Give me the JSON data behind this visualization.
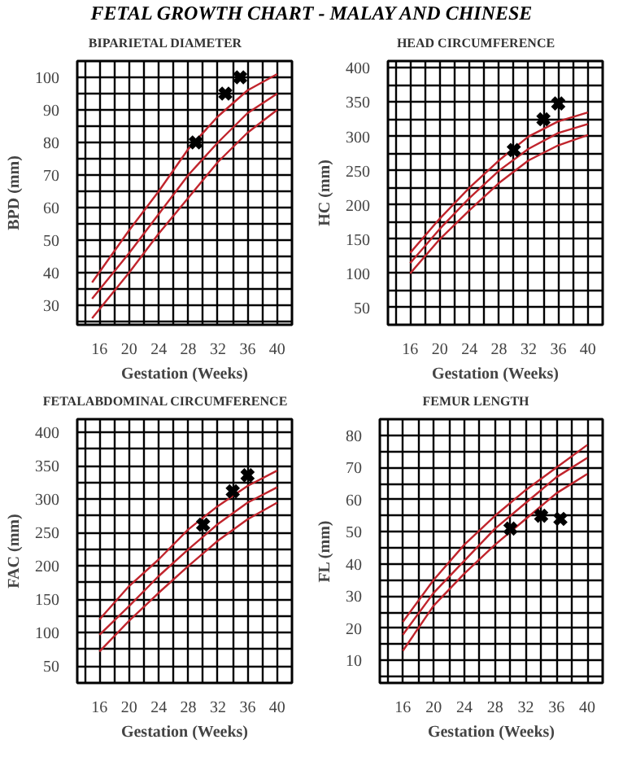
{
  "chart_data": [
    {
      "type": "line",
      "title": "BIPARIETAL DIAMETER",
      "xlabel": "Gestation (Weeks)",
      "ylabel": "BPD (mm)",
      "annotations": [
        "FETAL GROWTH CHART - MALAY AND CHINESE"
      ],
      "xlim": [
        13,
        42
      ],
      "xticks": [
        {
          "value": 14,
          "label": null
        },
        16,
        {
          "value": 18,
          "label": null
        },
        20,
        {
          "value": 22,
          "label": null
        },
        24,
        {
          "value": 26,
          "label": null
        },
        28,
        {
          "value": 30,
          "label": null
        },
        32,
        {
          "value": 34,
          "label": null
        },
        36,
        {
          "value": 38,
          "label": null
        },
        40,
        {
          "value": 42,
          "label": null
        }
      ],
      "ylim": [
        24,
        105
      ],
      "yticks": [
        {
          "value": 25,
          "label": null
        },
        30,
        {
          "value": 35,
          "label": null
        },
        40,
        {
          "value": 45,
          "label": null
        },
        50,
        {
          "value": 55,
          "label": null
        },
        60,
        {
          "value": 65,
          "label": null
        },
        70,
        {
          "value": 75,
          "label": null
        },
        80,
        {
          "value": 85,
          "label": null
        },
        90,
        {
          "value": 95,
          "label": null
        },
        100,
        {
          "value": 105,
          "label": null
        }
      ],
      "grid": true,
      "series": [
        {
          "color": "#c0242c",
          "x": [
            15,
            20,
            24,
            28,
            32,
            36,
            40
          ],
          "values": [
            37,
            53,
            65,
            78,
            88,
            96,
            101
          ]
        },
        {
          "color": "#c0242c",
          "x": [
            15,
            20,
            24,
            28,
            32,
            36,
            40
          ],
          "values": [
            32,
            46,
            58,
            70,
            80,
            89,
            95
          ]
        },
        {
          "color": "#c0242c",
          "x": [
            15,
            20,
            24,
            28,
            32,
            36,
            40
          ],
          "values": [
            26,
            40,
            52,
            63,
            74,
            83,
            90
          ]
        },
        {
          "type": "scatter",
          "color": "#000000",
          "marker": "cross",
          "x": [
            29,
            33,
            35
          ],
          "values": [
            80,
            95,
            100
          ]
        }
      ]
    },
    {
      "type": "line",
      "title": "HEAD CIRCUMFERENCE",
      "xlabel": "Gestation (Weeks)",
      "ylabel": "HC (mm)",
      "xlim": [
        13,
        42
      ],
      "xticks": [
        {
          "value": 14,
          "label": null
        },
        16,
        {
          "value": 18,
          "label": null
        },
        20,
        {
          "value": 22,
          "label": null
        },
        24,
        {
          "value": 26,
          "label": null
        },
        28,
        {
          "value": 30,
          "label": null
        },
        32,
        {
          "value": 34,
          "label": null
        },
        36,
        {
          "value": 38,
          "label": null
        },
        40,
        {
          "value": 42,
          "label": null
        }
      ],
      "ylim": [
        25,
        410
      ],
      "yticks": [
        {
          "value": 25,
          "label": null
        },
        50,
        {
          "value": 75,
          "label": null
        },
        100,
        {
          "value": 125,
          "label": null
        },
        150,
        {
          "value": 175,
          "label": null
        },
        200,
        {
          "value": 225,
          "label": null
        },
        250,
        {
          "value": 275,
          "label": null
        },
        300,
        {
          "value": 325,
          "label": null
        },
        350,
        {
          "value": 375,
          "label": null
        },
        400
      ],
      "grid": true,
      "series": [
        {
          "color": "#c0242c",
          "x": [
            16,
            20,
            24,
            28,
            32,
            36,
            40
          ],
          "values": [
            130,
            180,
            225,
            265,
            300,
            322,
            335
          ]
        },
        {
          "color": "#c0242c",
          "x": [
            16,
            20,
            24,
            28,
            32,
            36,
            40
          ],
          "values": [
            115,
            165,
            210,
            250,
            282,
            305,
            318
          ]
        },
        {
          "color": "#c0242c",
          "x": [
            16,
            20,
            24,
            28,
            32,
            36,
            40
          ],
          "values": [
            100,
            150,
            192,
            232,
            265,
            287,
            302
          ]
        },
        {
          "type": "scatter",
          "color": "#000000",
          "marker": "cross",
          "x": [
            30,
            34,
            36
          ],
          "values": [
            280,
            325,
            348
          ]
        }
      ]
    },
    {
      "type": "line",
      "title": "FETALABDOMINAL CIRCUMFERENCE",
      "xlabel": "Gestation (Weeks)",
      "ylabel": "FAC (mm)",
      "xlim": [
        13,
        42
      ],
      "xticks": [
        {
          "value": 14,
          "label": null
        },
        16,
        {
          "value": 18,
          "label": null
        },
        20,
        {
          "value": 22,
          "label": null
        },
        24,
        {
          "value": 26,
          "label": null
        },
        28,
        {
          "value": 30,
          "label": null
        },
        32,
        {
          "value": 34,
          "label": null
        },
        36,
        {
          "value": 38,
          "label": null
        },
        40,
        {
          "value": 42,
          "label": null
        }
      ],
      "ylim": [
        25,
        420
      ],
      "yticks": [
        {
          "value": 25,
          "label": null
        },
        50,
        {
          "value": 75,
          "label": null
        },
        100,
        {
          "value": 125,
          "label": null
        },
        150,
        {
          "value": 175,
          "label": null
        },
        200,
        {
          "value": 225,
          "label": null
        },
        250,
        {
          "value": 275,
          "label": null
        },
        300,
        {
          "value": 325,
          "label": null
        },
        350,
        {
          "value": 375,
          "label": null
        },
        400
      ],
      "grid": true,
      "series": [
        {
          "color": "#c0242c",
          "x": [
            16,
            20,
            24,
            28,
            32,
            36,
            40
          ],
          "values": [
            120,
            170,
            210,
            255,
            290,
            320,
            343
          ]
        },
        {
          "color": "#c0242c",
          "x": [
            16,
            20,
            24,
            28,
            32,
            36,
            40
          ],
          "values": [
            97,
            140,
            185,
            225,
            263,
            295,
            318
          ]
        },
        {
          "color": "#c0242c",
          "x": [
            16,
            20,
            24,
            28,
            32,
            36,
            40
          ],
          "values": [
            72,
            118,
            160,
            200,
            238,
            270,
            295
          ]
        },
        {
          "type": "scatter",
          "color": "#000000",
          "marker": "cross",
          "x": [
            30,
            34,
            36
          ],
          "values": [
            262,
            312,
            336
          ]
        }
      ]
    },
    {
      "type": "line",
      "title": "FEMUR LENGTH",
      "xlabel": "Gestation (Weeks)",
      "ylabel": "FL (mm)",
      "xlim": [
        13,
        42
      ],
      "xticks": [
        {
          "value": 14,
          "label": null
        },
        16,
        {
          "value": 18,
          "label": null
        },
        20,
        {
          "value": 22,
          "label": null
        },
        24,
        {
          "value": 26,
          "label": null
        },
        28,
        {
          "value": 30,
          "label": null
        },
        32,
        {
          "value": 34,
          "label": null
        },
        36,
        {
          "value": 38,
          "label": null
        },
        40,
        {
          "value": 42,
          "label": null
        }
      ],
      "ylim": [
        3,
        85
      ],
      "yticks": [
        {
          "value": 5,
          "label": null
        },
        10,
        {
          "value": 15,
          "label": null
        },
        20,
        {
          "value": 25,
          "label": null
        },
        30,
        {
          "value": 35,
          "label": null
        },
        40,
        {
          "value": 45,
          "label": null
        },
        50,
        {
          "value": 55,
          "label": null
        },
        60,
        {
          "value": 65,
          "label": null
        },
        70,
        {
          "value": 75,
          "label": null
        },
        80,
        {
          "value": 85,
          "label": null
        }
      ],
      "grid": true,
      "series": [
        {
          "color": "#c0242c",
          "x": [
            16,
            20,
            24,
            28,
            32,
            36,
            40
          ],
          "values": [
            22,
            35,
            46,
            55,
            63,
            70,
            77
          ]
        },
        {
          "color": "#c0242c",
          "x": [
            16,
            20,
            24,
            28,
            32,
            36,
            40
          ],
          "values": [
            18,
            31,
            41,
            51,
            59,
            67,
            73
          ]
        },
        {
          "color": "#c0242c",
          "x": [
            16,
            20,
            24,
            28,
            32,
            36,
            40
          ],
          "values": [
            13,
            27,
            37,
            46,
            54,
            62,
            68
          ]
        },
        {
          "type": "scatter",
          "color": "#000000",
          "marker": "cross",
          "x": [
            30,
            34,
            36.5
          ],
          "values": [
            51,
            55,
            54
          ]
        }
      ]
    }
  ]
}
